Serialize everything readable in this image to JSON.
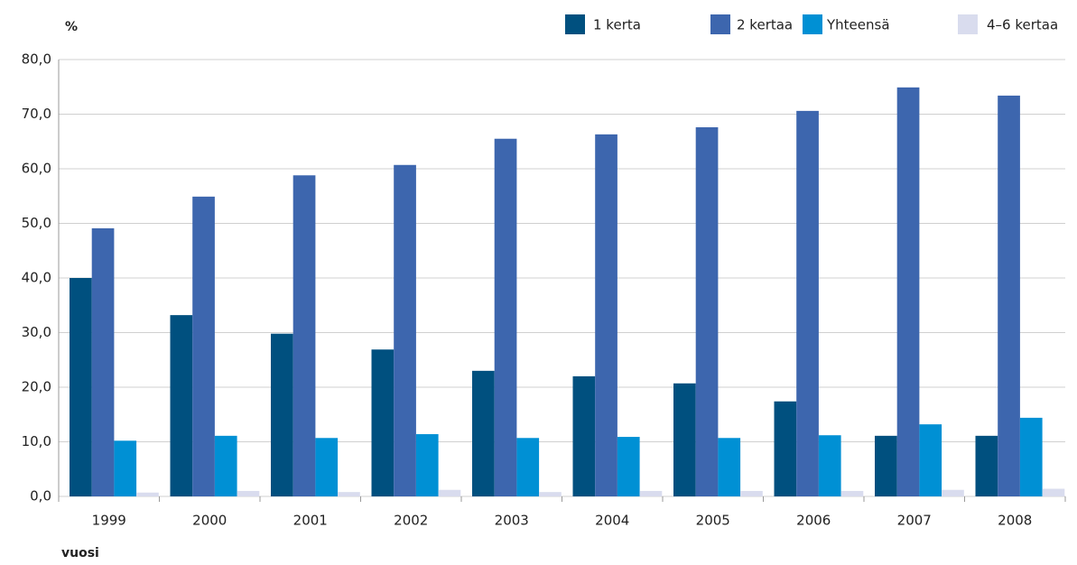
{
  "chart_data": {
    "type": "bar",
    "y_label": "%",
    "x_label": "vuosi",
    "categories": [
      "1999",
      "2000",
      "2001",
      "2002",
      "2003",
      "2004",
      "2005",
      "2006",
      "2007",
      "2008"
    ],
    "series": [
      {
        "name": "1 kerta",
        "color": "#00507f",
        "values": [
          40.0,
          33.2,
          29.8,
          26.9,
          23.0,
          22.0,
          20.7,
          17.4,
          11.1,
          11.1
        ]
      },
      {
        "name": "2 kertaa",
        "color": "#3d66ae",
        "values": [
          49.1,
          54.9,
          58.8,
          60.7,
          65.5,
          66.3,
          67.6,
          70.6,
          74.9,
          73.4
        ]
      },
      {
        "name": "Yhteensä",
        "color": "#0090d4",
        "values": [
          10.2,
          11.1,
          10.7,
          11.4,
          10.7,
          10.9,
          10.7,
          11.2,
          13.2,
          14.4
        ]
      },
      {
        "name": "4–6 kertaa",
        "color": "#d9dcee",
        "values": [
          0.7,
          1.0,
          0.8,
          1.2,
          0.8,
          1.0,
          1.0,
          1.0,
          1.2,
          1.4
        ]
      }
    ],
    "ylim": [
      0,
      80
    ],
    "yticks": [
      {
        "value": 0,
        "label": "0,0"
      },
      {
        "value": 10,
        "label": "10,0"
      },
      {
        "value": 20,
        "label": "20,0"
      },
      {
        "value": 30,
        "label": "30,0"
      },
      {
        "value": 40,
        "label": "40,0"
      },
      {
        "value": 50,
        "label": "50,0"
      },
      {
        "value": 60,
        "label": "60,0"
      },
      {
        "value": 70,
        "label": "70,0"
      },
      {
        "value": 80,
        "label": "80,0"
      }
    ],
    "grid": true
  }
}
